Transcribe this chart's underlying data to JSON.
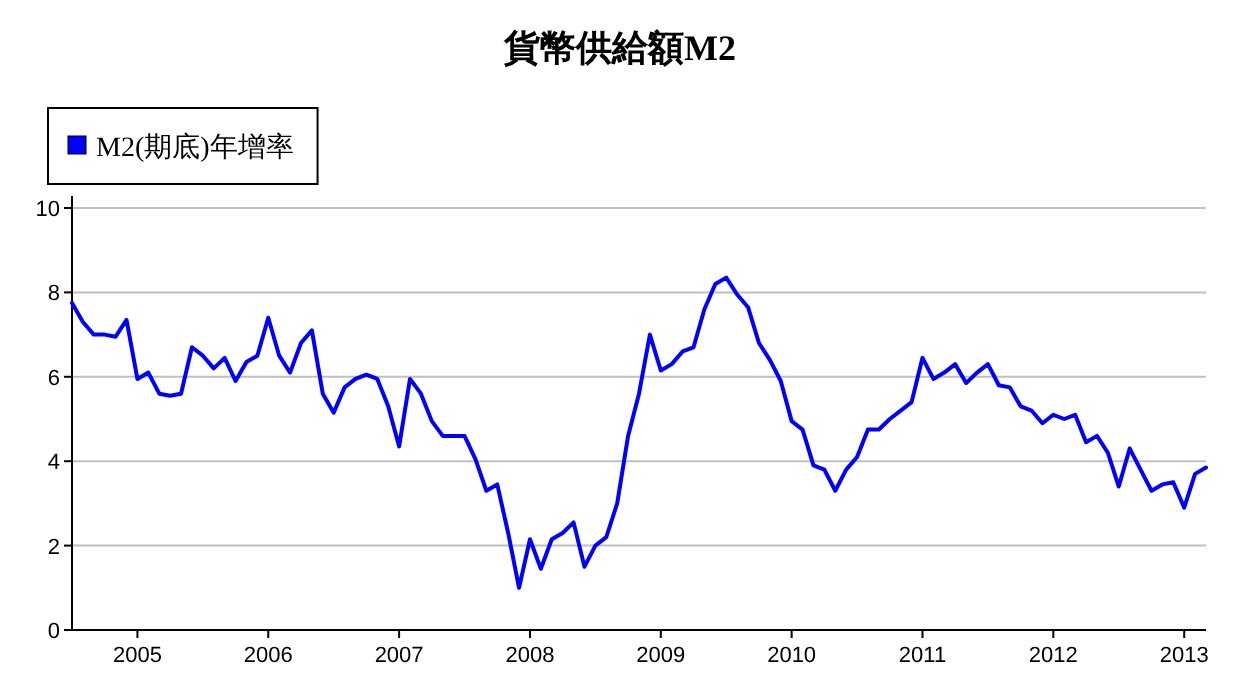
{
  "chart_data": {
    "type": "line",
    "title": "貨幣供給額M2",
    "legend": "top left",
    "grid": "y",
    "marker": "none",
    "line_style": "solid",
    "xlim": [
      "2004-07",
      "2013-03"
    ],
    "xticks": [
      "2005",
      "2006",
      "2007",
      "2008",
      "2009",
      "2010",
      "2011",
      "2012",
      "2013"
    ],
    "ylim": [
      0,
      10
    ],
    "yticks": [
      0,
      2,
      4,
      6,
      8,
      10
    ],
    "x": [
      "2004-07",
      "2004-08",
      "2004-09",
      "2004-10",
      "2004-11",
      "2004-12",
      "2005-01",
      "2005-02",
      "2005-03",
      "2005-04",
      "2005-05",
      "2005-06",
      "2005-07",
      "2005-08",
      "2005-09",
      "2005-10",
      "2005-11",
      "2005-12",
      "2006-01",
      "2006-02",
      "2006-03",
      "2006-04",
      "2006-05",
      "2006-06",
      "2006-07",
      "2006-08",
      "2006-09",
      "2006-10",
      "2006-11",
      "2006-12",
      "2007-01",
      "2007-02",
      "2007-03",
      "2007-04",
      "2007-05",
      "2007-06",
      "2007-07",
      "2007-08",
      "2007-09",
      "2007-10",
      "2007-11",
      "2007-12",
      "2008-01",
      "2008-02",
      "2008-03",
      "2008-04",
      "2008-05",
      "2008-06",
      "2008-07",
      "2008-08",
      "2008-09",
      "2008-10",
      "2008-11",
      "2008-12",
      "2009-01",
      "2009-02",
      "2009-03",
      "2009-04",
      "2009-05",
      "2009-06",
      "2009-07",
      "2009-08",
      "2009-09",
      "2009-10",
      "2009-11",
      "2009-12",
      "2010-01",
      "2010-02",
      "2010-03",
      "2010-04",
      "2010-05",
      "2010-06",
      "2010-07",
      "2010-08",
      "2010-09",
      "2010-10",
      "2010-11",
      "2010-12",
      "2011-01",
      "2011-02",
      "2011-03",
      "2011-04",
      "2011-05",
      "2011-06",
      "2011-07",
      "2011-08",
      "2011-09",
      "2011-10",
      "2011-11",
      "2011-12",
      "2012-01",
      "2012-02",
      "2012-03",
      "2012-04",
      "2012-05",
      "2012-06",
      "2012-07",
      "2012-08",
      "2012-09",
      "2012-10",
      "2012-11",
      "2012-12",
      "2013-01",
      "2013-02",
      "2013-03"
    ],
    "series": [
      {
        "name": "M2(期底)年增率",
        "color": "#0000ff",
        "values": [
          7.75,
          7.3,
          7.0,
          7.0,
          6.95,
          7.35,
          5.95,
          6.1,
          5.6,
          5.55,
          5.6,
          6.7,
          6.5,
          6.2,
          6.45,
          5.9,
          6.35,
          6.5,
          7.4,
          6.5,
          6.1,
          6.8,
          7.1,
          5.6,
          5.15,
          5.75,
          5.95,
          6.05,
          5.95,
          5.3,
          4.35,
          5.95,
          5.6,
          4.95,
          4.6,
          4.6,
          4.6,
          4.05,
          3.3,
          3.45,
          2.3,
          1.0,
          2.15,
          1.45,
          2.15,
          2.3,
          2.55,
          1.5,
          2.0,
          2.2,
          3.0,
          4.6,
          5.6,
          7.0,
          6.15,
          6.3,
          6.6,
          6.7,
          7.6,
          8.2,
          8.35,
          7.95,
          7.65,
          6.8,
          6.4,
          5.9,
          4.95,
          4.75,
          3.9,
          3.8,
          3.3,
          3.8,
          4.1,
          4.75,
          4.75,
          5.0,
          5.2,
          5.4,
          6.45,
          5.95,
          6.1,
          6.3,
          5.85,
          6.1,
          6.3,
          5.8,
          5.75,
          5.3,
          5.2,
          4.9,
          5.1,
          5.0,
          5.1,
          4.45,
          4.6,
          4.2,
          3.4,
          4.3,
          3.8,
          3.3,
          3.45,
          3.5,
          2.9,
          3.7,
          3.85
        ]
      }
    ]
  }
}
